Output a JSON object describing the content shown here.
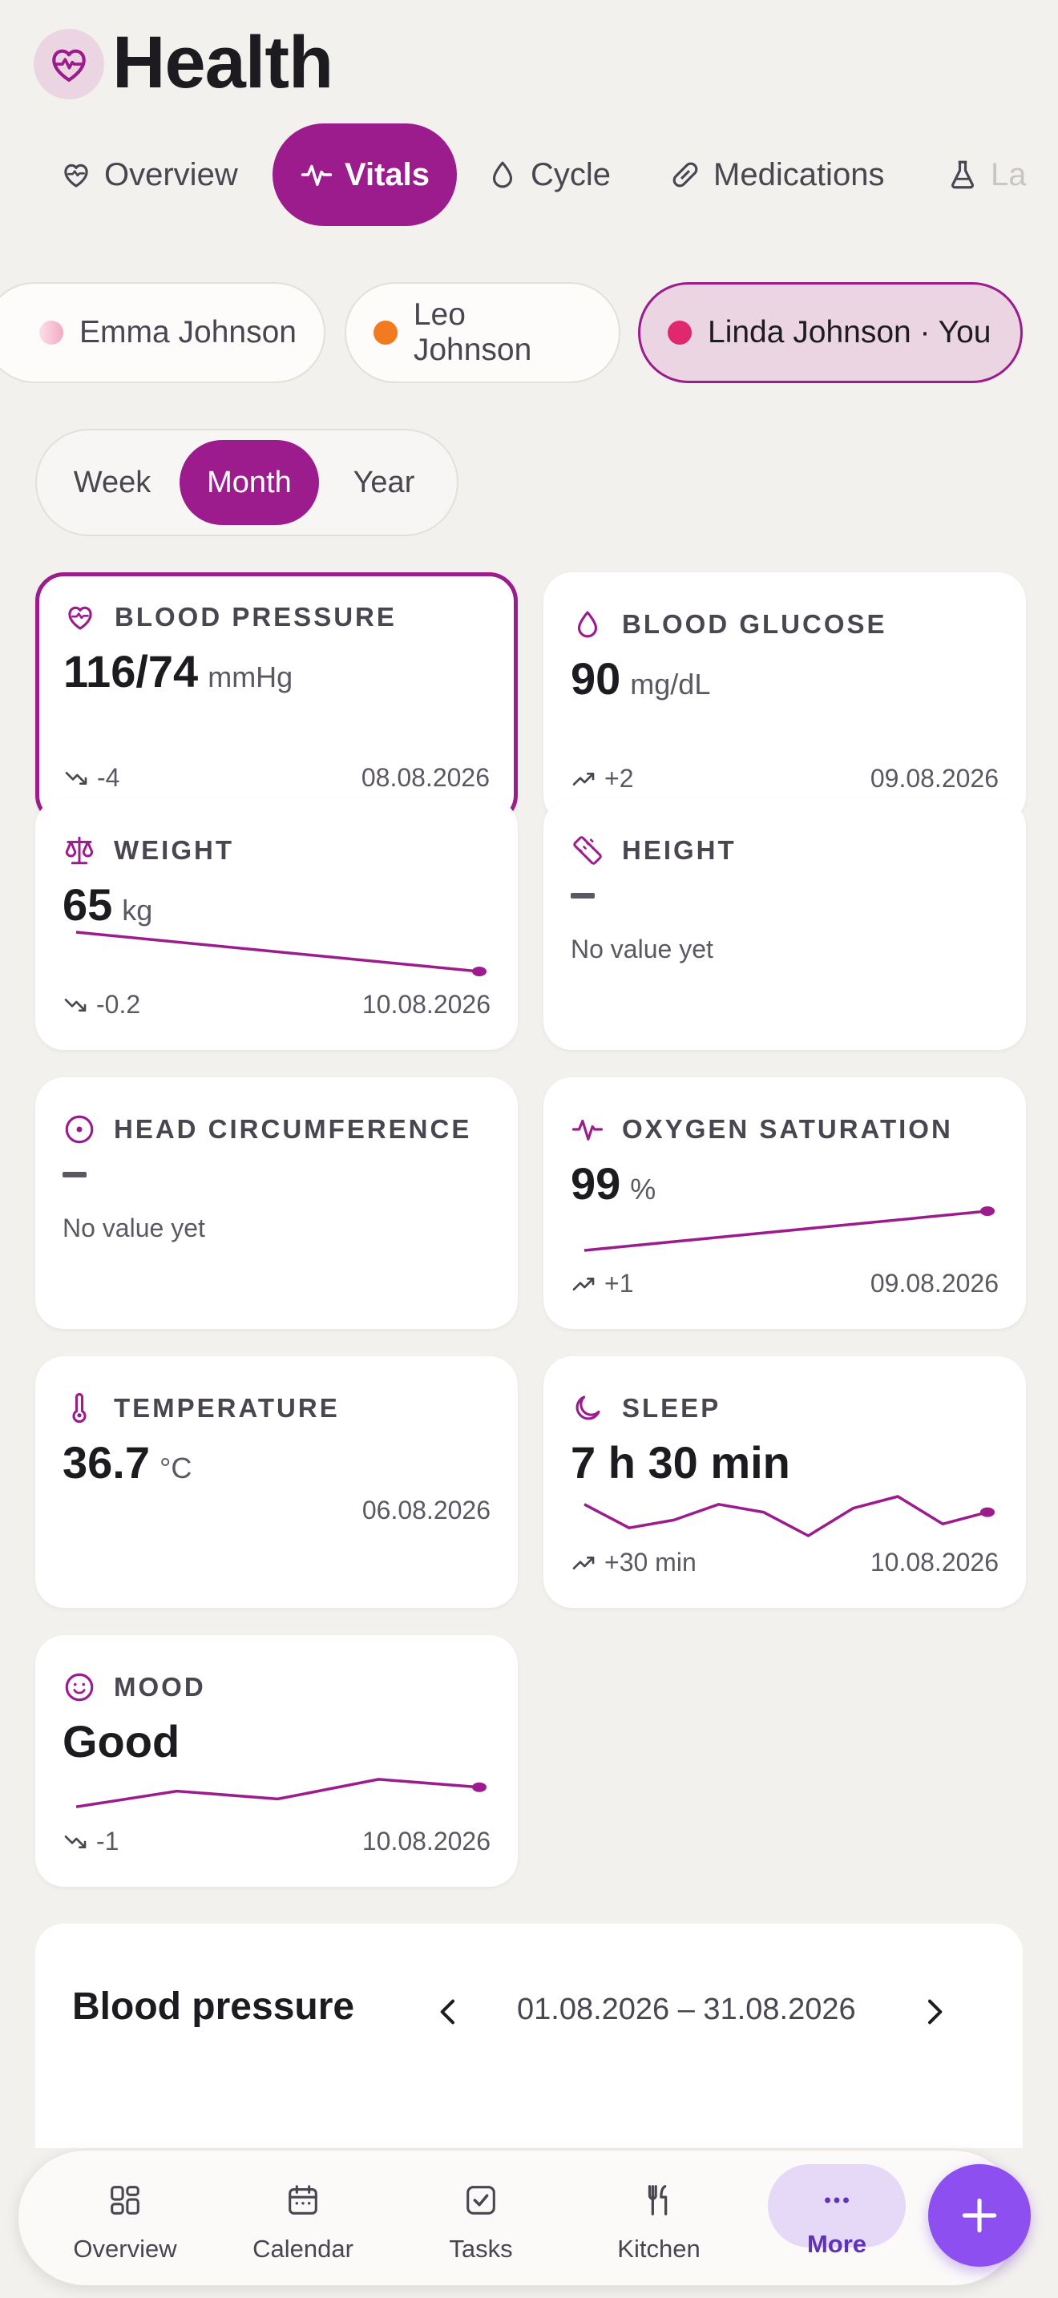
{
  "app": {
    "title": "Health",
    "icon": "heart-pulse-icon"
  },
  "tabs": [
    {
      "label": "Overview",
      "icon": "heart-icon"
    },
    {
      "label": "Vitals",
      "icon": "pulse-icon",
      "active": true
    },
    {
      "label": "Cycle",
      "icon": "drop-icon"
    },
    {
      "label": "Medications",
      "icon": "pill-icon"
    },
    {
      "label": "La",
      "icon": "flask-icon"
    }
  ],
  "people": [
    {
      "name": "Emma Johnson",
      "color": "#f4a9c4"
    },
    {
      "name": "Leo Johnson",
      "color": "#f47a20"
    },
    {
      "name": "Linda Johnson · You",
      "color": "#e0286f",
      "active": true
    }
  ],
  "period": {
    "options": [
      "Week",
      "Month",
      "Year"
    ],
    "selected": "Month"
  },
  "cards": {
    "blood_pressure": {
      "label": "BLOOD PRESSURE",
      "value": "116/74",
      "unit": "mmHg",
      "trend": "-4",
      "trend_dir": "down",
      "date": "08.08.2026",
      "selected": true
    },
    "blood_glucose": {
      "label": "BLOOD GLUCOSE",
      "value": "90",
      "unit": "mg/dL",
      "trend": "+2",
      "trend_dir": "up",
      "date": "09.08.2026"
    },
    "weight": {
      "label": "WEIGHT",
      "value": "65",
      "unit": "kg",
      "trend": "-0.2",
      "trend_dir": "down",
      "date": "10.08.2026",
      "spark": [
        1.0,
        0.0
      ]
    },
    "height": {
      "label": "HEIGHT",
      "empty": "No value yet"
    },
    "head_circumference": {
      "label": "HEAD CIRCUMFERENCE",
      "empty": "No value yet"
    },
    "oxygen_saturation": {
      "label": "OXYGEN SATURATION",
      "value": "99",
      "unit": "%",
      "trend": "+1",
      "trend_dir": "up",
      "date": "09.08.2026",
      "spark": [
        0.0,
        1.0
      ]
    },
    "temperature": {
      "label": "TEMPERATURE",
      "value": "36.7",
      "unit": "°C",
      "date": "06.08.2026"
    },
    "sleep": {
      "label": "SLEEP",
      "value": "7 h 30 min",
      "trend": "+30 min",
      "trend_dir": "up",
      "date": "10.08.2026",
      "spark": [
        0.8,
        0.2,
        0.4,
        0.8,
        0.6,
        0.0,
        0.7,
        1.0,
        0.3,
        0.6
      ]
    },
    "mood": {
      "label": "MOOD",
      "value": "Good",
      "trend": "-1",
      "trend_dir": "down",
      "date": "10.08.2026",
      "spark": [
        0.2,
        0.6,
        0.4,
        0.9,
        0.7
      ]
    }
  },
  "detail": {
    "title": "Blood pressure",
    "range": "01.08.2026 – 31.08.2026"
  },
  "bottom_nav": [
    {
      "label": "Overview",
      "icon": "grid-icon"
    },
    {
      "label": "Calendar",
      "icon": "calendar-icon"
    },
    {
      "label": "Tasks",
      "icon": "checkbox-icon"
    },
    {
      "label": "Kitchen",
      "icon": "fork-knife-icon"
    },
    {
      "label": "More",
      "icon": "more-dots-icon",
      "active": true
    }
  ],
  "fab": {
    "icon": "plus-icon"
  },
  "colors": {
    "accent": "#9c1b8d",
    "nav_active": "#5e33b8",
    "fab": "#8e4ff0",
    "background": "#f3f1ee"
  }
}
